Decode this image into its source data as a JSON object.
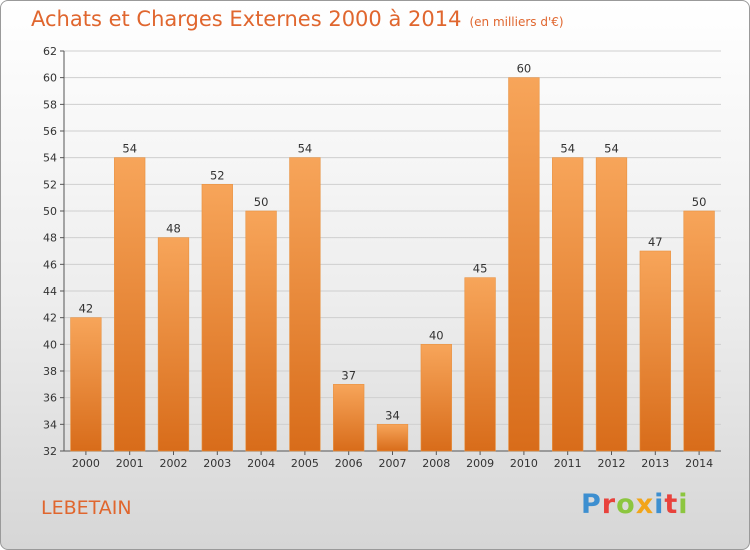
{
  "header": {
    "title": "Achats et Charges Externes 2000 à 2014",
    "subtitle": "(en milliers d'€)"
  },
  "footer": {
    "commune": "LEBETAIN",
    "logo": [
      "P",
      "r",
      "o",
      "x",
      "i",
      "t",
      "i"
    ]
  },
  "colors": {
    "accent": "#e0662e",
    "bar_light": "#f7a55a",
    "bar_dark": "#d86c1a",
    "logo": [
      "#3d8fd0",
      "#e8423c",
      "#8cc63f",
      "#f2a51a",
      "#3d8fd0",
      "#e8423c",
      "#8cc63f"
    ]
  },
  "chart_data": {
    "type": "bar",
    "categories": [
      "2000",
      "2001",
      "2002",
      "2003",
      "2004",
      "2005",
      "2006",
      "2007",
      "2008",
      "2009",
      "2010",
      "2011",
      "2012",
      "2013",
      "2014"
    ],
    "values": [
      42,
      54,
      48,
      52,
      50,
      54,
      37,
      34,
      40,
      45,
      60,
      54,
      54,
      47,
      50
    ],
    "ylim": [
      32,
      62
    ],
    "yticks": [
      32,
      34,
      36,
      38,
      40,
      42,
      44,
      46,
      48,
      50,
      52,
      54,
      56,
      58,
      60,
      62
    ],
    "grid": true,
    "data_labels": true
  }
}
